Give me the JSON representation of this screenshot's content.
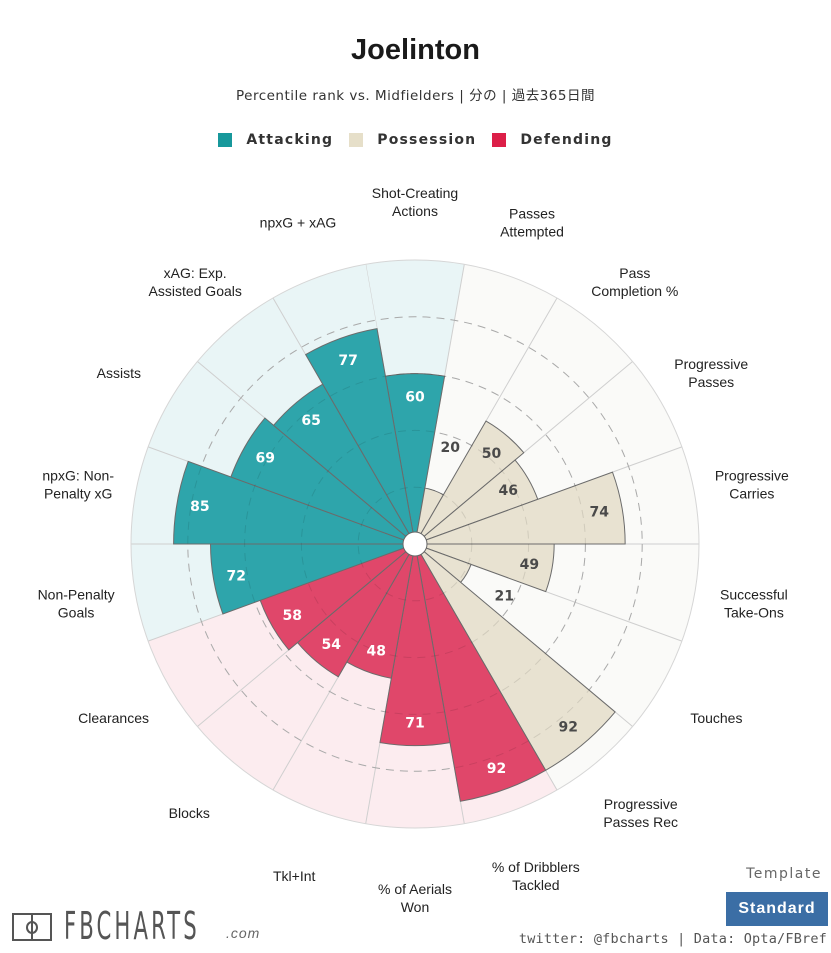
{
  "header": {
    "title": "Joelinton",
    "subtitle": "Percentile rank vs. Midfielders | 分の | 過去365日間"
  },
  "legend": [
    {
      "label": "Attacking",
      "color": "#17989b"
    },
    {
      "label": "Possession",
      "color": "#e6dfc9"
    },
    {
      "label": "Defending",
      "color": "#dc1f48"
    }
  ],
  "colors": {
    "attacking_bar": "#2ea5ab",
    "attacking_bg": "#e9f5f6",
    "possession_bar": "#e8e2d1",
    "possession_bg": "#fafaf8",
    "defending_bar": "#e0476a",
    "defending_bg": "#fcecef",
    "value_text_light": "#ffffff",
    "value_text_dark": "#4a4a4a"
  },
  "chart_data": {
    "type": "polar-bar",
    "title": "Joelinton",
    "subtitle": "Percentile rank vs. Midfielders | 分の | 過去365日間",
    "rmax": 100,
    "gridlines": [
      20,
      40,
      60,
      80
    ],
    "categories": [
      {
        "label": "Shot-Creating\nActions",
        "value": 60,
        "group": "attacking"
      },
      {
        "label": "Passes\nAttempted",
        "value": 20,
        "group": "possession"
      },
      {
        "label": "Pass\nCompletion %",
        "value": 50,
        "group": "possession"
      },
      {
        "label": "Progressive\nPasses",
        "value": 46,
        "group": "possession"
      },
      {
        "label": "Progressive\nCarries",
        "value": 74,
        "group": "possession"
      },
      {
        "label": "Successful\nTake-Ons",
        "value": 49,
        "group": "possession"
      },
      {
        "label": "Touches",
        "value": 21,
        "group": "possession"
      },
      {
        "label": "Progressive\nPasses Rec",
        "value": 92,
        "group": "possession"
      },
      {
        "label": "% of Dribblers\nTackled",
        "value": 92,
        "group": "defending"
      },
      {
        "label": "% of Aerials\nWon",
        "value": 71,
        "group": "defending"
      },
      {
        "label": "Tkl+Int",
        "value": 48,
        "group": "defending"
      },
      {
        "label": "Blocks",
        "value": 54,
        "group": "defending"
      },
      {
        "label": "Clearances",
        "value": 58,
        "group": "defending"
      },
      {
        "label": "Non-Penalty\nGoals",
        "value": 72,
        "group": "attacking"
      },
      {
        "label": "npxG: Non-\nPenalty xG",
        "value": 85,
        "group": "attacking"
      },
      {
        "label": "Assists",
        "value": 69,
        "group": "attacking"
      },
      {
        "label": "xAG: Exp.\nAssisted Goals",
        "value": 65,
        "group": "attacking"
      },
      {
        "label": "npxG + xAG",
        "value": 77,
        "group": "attacking"
      }
    ]
  },
  "footer": {
    "logo_text": "FBCHARTS",
    "logo_suffix": ".com",
    "template_label": "Template",
    "template_button": "Standard",
    "credit": "twitter: @fbcharts | Data: Opta/FBref"
  }
}
